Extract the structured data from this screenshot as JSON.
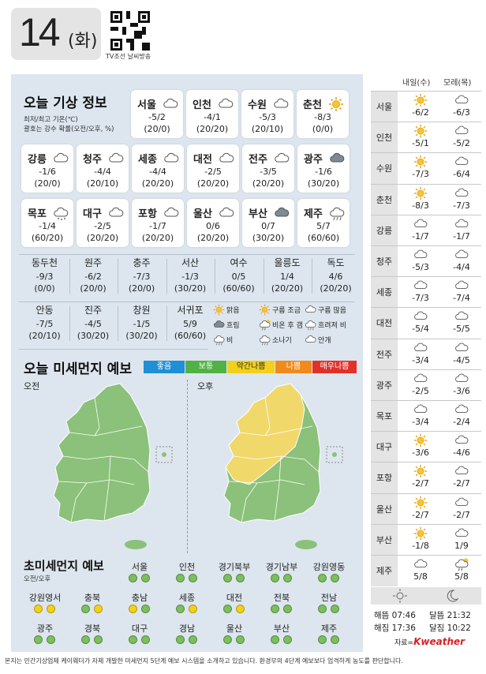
{
  "header": {
    "day": "14",
    "weekday": "(화)",
    "qr_caption": "TV조선 날씨방송"
  },
  "today": {
    "title": "오늘 기상 정보",
    "note1": "최저/최고 기온(℃)",
    "note2": "괄호는 강수 확률(오전/오후, %)",
    "cards": [
      {
        "name": "서울",
        "temp": "-5/2",
        "prob": "(20/0)",
        "icon": "cloud-icon"
      },
      {
        "name": "인천",
        "temp": "-4/1",
        "prob": "(20/20)",
        "icon": "cloud-icon"
      },
      {
        "name": "수원",
        "temp": "-5/3",
        "prob": "(20/10)",
        "icon": "cloud-icon"
      },
      {
        "name": "춘천",
        "temp": "-8/3",
        "prob": "(0/0)",
        "icon": "sun-icon"
      },
      {
        "name": "강릉",
        "temp": "-1/6",
        "prob": "(20/0)",
        "icon": "cloud-icon"
      },
      {
        "name": "청주",
        "temp": "-4/4",
        "prob": "(20/10)",
        "icon": "cloud-icon"
      },
      {
        "name": "세종",
        "temp": "-4/4",
        "prob": "(20/20)",
        "icon": "cloud-icon"
      },
      {
        "name": "대전",
        "temp": "-2/5",
        "prob": "(20/20)",
        "icon": "cloud-icon"
      },
      {
        "name": "전주",
        "temp": "-3/5",
        "prob": "(20/20)",
        "icon": "cloud-icon"
      },
      {
        "name": "광주",
        "temp": "-1/6",
        "prob": "(30/20)",
        "icon": "dark-cloud-icon"
      },
      {
        "name": "목포",
        "temp": "-1/4",
        "prob": "(60/20)",
        "icon": "snow-cloud-icon"
      },
      {
        "name": "대구",
        "temp": "-2/5",
        "prob": "(20/20)",
        "icon": "cloud-icon"
      },
      {
        "name": "포항",
        "temp": "-1/7",
        "prob": "(20/20)",
        "icon": "cloud-icon"
      },
      {
        "name": "울산",
        "temp": "0/6",
        "prob": "(20/20)",
        "icon": "cloud-icon"
      },
      {
        "name": "부산",
        "temp": "0/7",
        "prob": "(30/20)",
        "icon": "dark-cloud-icon"
      },
      {
        "name": "제주",
        "temp": "5/7",
        "prob": "(60/60)",
        "icon": "rain-cloud-icon"
      }
    ],
    "cells": [
      {
        "name": "동두천",
        "temp": "-9/3",
        "prob": "(0/0)"
      },
      {
        "name": "원주",
        "temp": "-6/2",
        "prob": "(20/0)"
      },
      {
        "name": "충주",
        "temp": "-7/3",
        "prob": "(20/0)"
      },
      {
        "name": "서산",
        "temp": "-1/3",
        "prob": "(30/20)"
      },
      {
        "name": "여수",
        "temp": "0/5",
        "prob": "(60/60)"
      },
      {
        "name": "울릉도",
        "temp": "1/4",
        "prob": "(20/20)"
      },
      {
        "name": "독도",
        "temp": "4/6",
        "prob": "(20/20)"
      },
      {
        "name": "안동",
        "temp": "-7/5",
        "prob": "(20/10)"
      },
      {
        "name": "진주",
        "temp": "-4/5",
        "prob": "(30/20)"
      },
      {
        "name": "창원",
        "temp": "-1/5",
        "prob": "(30/20)"
      },
      {
        "name": "서귀포",
        "temp": "5/9",
        "prob": "(60/60)"
      }
    ],
    "legend": [
      "맑음",
      "구름 조금",
      "구름 많음",
      "흐림",
      "비온 후 갬",
      "흐려져 비",
      "비",
      "소나기",
      "안개"
    ]
  },
  "dust": {
    "title": "오늘 미세먼지 예보",
    "levels": [
      {
        "label": "좋음",
        "color": "#1f8fd6"
      },
      {
        "label": "보통",
        "color": "#52b146"
      },
      {
        "label": "약간나쁨",
        "color": "#f2d11a"
      },
      {
        "label": "나쁨",
        "color": "#f08a1c"
      },
      {
        "label": "매우나쁨",
        "color": "#e0322a"
      }
    ],
    "am": "오전",
    "pm": "오후"
  },
  "fine": {
    "title": "초미세먼지 예보",
    "sub": "오전/오후",
    "regions": [
      {
        "name": "서울",
        "am": "good",
        "pm": "good"
      },
      {
        "name": "인천",
        "am": "good",
        "pm": "good"
      },
      {
        "name": "경기북부",
        "am": "good",
        "pm": "good"
      },
      {
        "name": "경기남부",
        "am": "good",
        "pm": "good"
      },
      {
        "name": "강원영동",
        "am": "good",
        "pm": "good"
      },
      {
        "name": "강원영서",
        "am": "mod",
        "pm": "mod"
      },
      {
        "name": "충북",
        "am": "good",
        "pm": "mod"
      },
      {
        "name": "충남",
        "am": "mod",
        "pm": "good"
      },
      {
        "name": "세종",
        "am": "good",
        "pm": "mod"
      },
      {
        "name": "대전",
        "am": "good",
        "pm": "mod"
      },
      {
        "name": "전북",
        "am": "good",
        "pm": "good"
      },
      {
        "name": "전남",
        "am": "good",
        "pm": "good"
      },
      {
        "name": "광주",
        "am": "good",
        "pm": "good"
      },
      {
        "name": "경북",
        "am": "good",
        "pm": "good"
      },
      {
        "name": "대구",
        "am": "good",
        "pm": "good"
      },
      {
        "name": "경남",
        "am": "good",
        "pm": "good"
      },
      {
        "name": "울산",
        "am": "good",
        "pm": "good"
      },
      {
        "name": "부산",
        "am": "good",
        "pm": "good"
      },
      {
        "name": "제주",
        "am": "good",
        "pm": "good"
      }
    ]
  },
  "forecast": {
    "h1": "내일(수)",
    "h2": "모레(목)",
    "rows": [
      {
        "city": "서울",
        "d1": "-6/2",
        "i1": "sun-icon",
        "d2": "-6/3",
        "i2": "cloud-icon"
      },
      {
        "city": "인천",
        "d1": "-5/1",
        "i1": "sun-icon",
        "d2": "-5/2",
        "i2": "cloud-icon"
      },
      {
        "city": "수원",
        "d1": "-7/3",
        "i1": "sun-icon",
        "d2": "-6/4",
        "i2": "cloud-icon"
      },
      {
        "city": "춘천",
        "d1": "-8/3",
        "i1": "sun-icon",
        "d2": "-7/3",
        "i2": "cloud-icon"
      },
      {
        "city": "강릉",
        "d1": "-1/7",
        "i1": "cloud-icon",
        "d2": "-1/7",
        "i2": "cloud-icon"
      },
      {
        "city": "청주",
        "d1": "-5/3",
        "i1": "cloud-icon",
        "d2": "-4/4",
        "i2": "cloud-icon"
      },
      {
        "city": "세종",
        "d1": "-7/3",
        "i1": "cloud-icon",
        "d2": "-7/4",
        "i2": "cloud-icon"
      },
      {
        "city": "대전",
        "d1": "-5/4",
        "i1": "cloud-icon",
        "d2": "-5/5",
        "i2": "cloud-icon"
      },
      {
        "city": "전주",
        "d1": "-3/4",
        "i1": "cloud-icon",
        "d2": "-4/5",
        "i2": "cloud-icon"
      },
      {
        "city": "광주",
        "d1": "-2/5",
        "i1": "cloud-icon",
        "d2": "-3/6",
        "i2": "cloud-icon"
      },
      {
        "city": "목포",
        "d1": "-3/4",
        "i1": "cloud-icon",
        "d2": "-2/4",
        "i2": "cloud-icon"
      },
      {
        "city": "대구",
        "d1": "-3/6",
        "i1": "sun-icon",
        "d2": "-4/6",
        "i2": "cloud-icon"
      },
      {
        "city": "포항",
        "d1": "-2/7",
        "i1": "sun-icon",
        "d2": "-2/7",
        "i2": "cloud-icon"
      },
      {
        "city": "울산",
        "d1": "-2/7",
        "i1": "sun-icon",
        "d2": "-2/7",
        "i2": "cloud-icon"
      },
      {
        "city": "부산",
        "d1": "-1/8",
        "i1": "sun-icon",
        "d2": "1/9",
        "i2": "cloud-icon"
      },
      {
        "city": "제주",
        "d1": "5/8",
        "i1": "cloud-icon",
        "d2": "5/8",
        "i2": "rain-sun-icon"
      }
    ],
    "sunrise": "해뜸 07:46",
    "sunset": "해짐 17:36",
    "moonrise": "달뜸 21:32",
    "moonset": "달짐 10:22",
    "source_label": "자료=",
    "source_brand": "Kweather"
  },
  "footer": "본지는 민간기상업체 케이웨더가 자체 개발한 미세먼지 5단계 예보 시스템을 소개하고 있습니다. 환경부의 4단계 예보보다 엄격하게 농도를 판단합니다."
}
